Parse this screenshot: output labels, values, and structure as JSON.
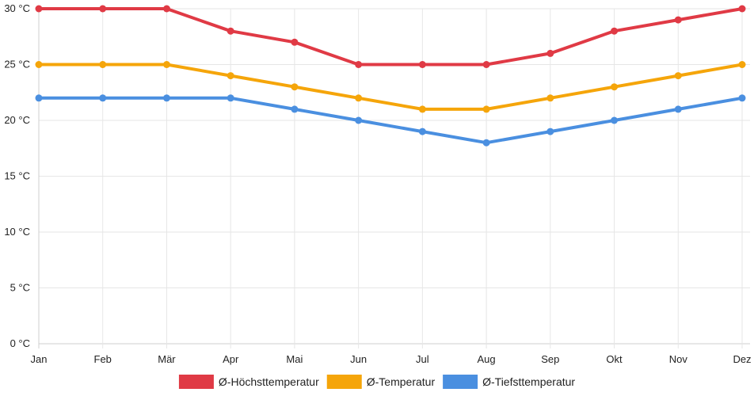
{
  "chart_data": {
    "type": "line",
    "title": "",
    "xlabel": "",
    "ylabel": "",
    "categories": [
      "Jan",
      "Feb",
      "Mär",
      "Apr",
      "Mai",
      "Jun",
      "Jul",
      "Aug",
      "Sep",
      "Okt",
      "Nov",
      "Dez"
    ],
    "ylim": [
      0,
      30
    ],
    "yticks": [
      0,
      5,
      10,
      15,
      20,
      25,
      30
    ],
    "ytick_suffix": " °C",
    "grid": true,
    "legend_position": "bottom-center",
    "series": [
      {
        "name": "Ø-Höchsttemperatur",
        "color": "#e03a45",
        "values": [
          30,
          30,
          30,
          28,
          27,
          25,
          25,
          25,
          26,
          28,
          29,
          30
        ]
      },
      {
        "name": "Ø-Temperatur",
        "color": "#f5a50a",
        "values": [
          25,
          25,
          25,
          24,
          23,
          22,
          21,
          21,
          22,
          23,
          24,
          25
        ]
      },
      {
        "name": "Ø-Tiefsttemperatur",
        "color": "#4a8fe0",
        "values": [
          22,
          22,
          22,
          22,
          21,
          20,
          19,
          18,
          19,
          20,
          21,
          22
        ]
      }
    ]
  }
}
